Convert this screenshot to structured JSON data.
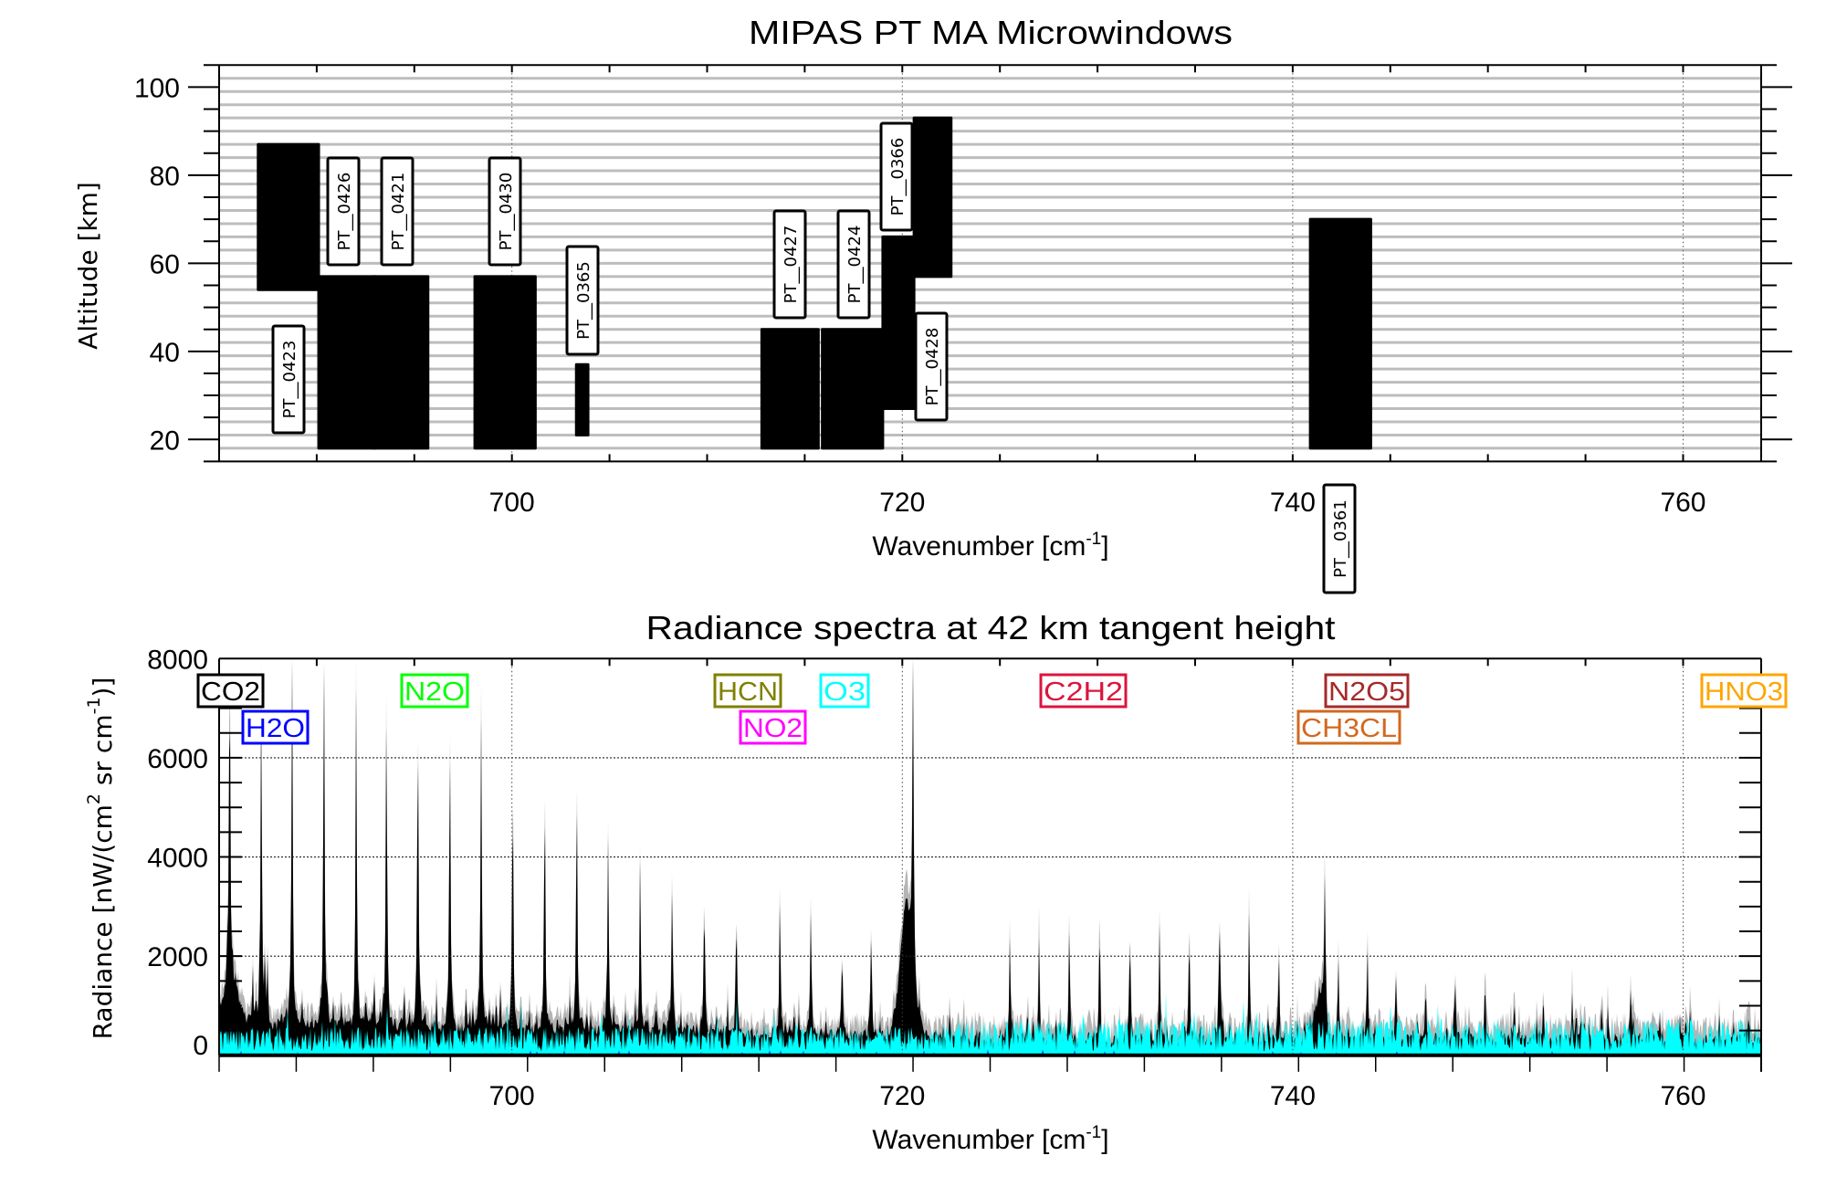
{
  "chart_data": [
    {
      "type": "bar",
      "title": "MIPAS PT MA Microwindows",
      "xlabel": "Wavenumber [cm",
      "xlabel_sup": "-1",
      "xlabel_end": "]",
      "ylabel": "Altitude [km]",
      "xlim": [
        685,
        764
      ],
      "ylim": [
        15,
        105
      ],
      "xticks": [
        700,
        720,
        740,
        760
      ],
      "yticks": [
        20,
        40,
        60,
        80,
        100
      ],
      "grid": "vertical dotted at major x ticks; horizontal gray lines at tangent heights",
      "tangent_heights_km": [
        18,
        21,
        24,
        27,
        30,
        33,
        36,
        39,
        42,
        45,
        48,
        51,
        54,
        57,
        60,
        63,
        66,
        69,
        72,
        75,
        78,
        81,
        84,
        87,
        90,
        93,
        96,
        99,
        102
      ],
      "windows": [
        {
          "label": "PT__0423",
          "wn": [
            687.0,
            690.1
          ],
          "alt": [
            54,
            87
          ]
        },
        {
          "label": "PT__0426",
          "wn": [
            690.1,
            693.0
          ],
          "alt": [
            18,
            57
          ]
        },
        {
          "label": "PT__0421",
          "wn": [
            692.9,
            695.7
          ],
          "alt": [
            18,
            57
          ]
        },
        {
          "label": "PT__0430",
          "wn": [
            698.1,
            701.2
          ],
          "alt": [
            18,
            57
          ]
        },
        {
          "label": "PT__0365",
          "wn": [
            703.3,
            703.9
          ],
          "alt": [
            21,
            37
          ]
        },
        {
          "label": "PT__0427",
          "wn": [
            712.8,
            715.7
          ],
          "alt": [
            18,
            45
          ]
        },
        {
          "label": "PT__0424",
          "wn": [
            715.9,
            719.0
          ],
          "alt": [
            18,
            45
          ]
        },
        {
          "label": "PT__0366",
          "wn": [
            719.0,
            720.6
          ],
          "alt": [
            27,
            66
          ]
        },
        {
          "label": "PT__0428",
          "wn": [
            720.6,
            722.5
          ],
          "alt": [
            57,
            93
          ]
        },
        {
          "label": "PT__0361",
          "wn": [
            740.9,
            744.0
          ],
          "alt": [
            18,
            70
          ]
        }
      ]
    },
    {
      "type": "area",
      "title": "Radiance spectra at 42 km tangent height",
      "xlabel": "Wavenumber [cm",
      "xlabel_sup": "-1",
      "xlabel_end": "]",
      "ylabel_parts": [
        "Radiance [nW/(cm",
        "2",
        " sr cm",
        "-1",
        ")]"
      ],
      "xlim": [
        685,
        764
      ],
      "ylim": [
        0,
        8000
      ],
      "xticks": [
        700,
        720,
        740,
        760
      ],
      "yticks": [
        0,
        2000,
        4000,
        6000,
        8000
      ],
      "grid": "dotted at major ticks",
      "series_colors": {
        "upper": "#b4b4b4",
        "total": "#000000",
        "second": "#00ffff",
        "third": "#0000ff"
      },
      "peaks": [
        [
          685.54,
          7000
        ],
        [
          687.16,
          6800
        ],
        [
          688.74,
          7600
        ],
        [
          690.37,
          7600
        ],
        [
          692.02,
          6930
        ],
        [
          693.57,
          6640
        ],
        [
          695.18,
          6560
        ],
        [
          696.82,
          6180
        ],
        [
          698.43,
          5880
        ],
        [
          700.04,
          5300
        ],
        [
          701.68,
          5040
        ],
        [
          703.32,
          5110
        ],
        [
          704.93,
          4050
        ],
        [
          706.57,
          3510
        ],
        [
          708.21,
          2950
        ],
        [
          709.86,
          2750
        ],
        [
          711.5,
          2600
        ],
        [
          713.73,
          2440
        ],
        [
          715.31,
          2140
        ],
        [
          716.92,
          1910
        ],
        [
          718.41,
          2210
        ],
        [
          720.55,
          6800
        ],
        [
          725.51,
          1950
        ],
        [
          727.01,
          2060
        ],
        [
          728.56,
          2250
        ],
        [
          730.11,
          2440
        ],
        [
          731.66,
          2210
        ],
        [
          733.18,
          2290
        ],
        [
          734.7,
          2210
        ],
        [
          736.25,
          2400
        ],
        [
          737.77,
          2250
        ],
        [
          739.29,
          1910
        ],
        [
          741.65,
          2860
        ],
        [
          742.34,
          1760
        ],
        [
          743.83,
          1950
        ],
        [
          745.29,
          1370
        ],
        [
          746.81,
          1110
        ],
        [
          748.33,
          1070
        ],
        [
          749.85,
          1180
        ],
        [
          751.35,
          920
        ],
        [
          752.84,
          880
        ],
        [
          754.33,
          690
        ],
        [
          755.82,
          650
        ],
        [
          757.32,
          1110
        ],
        [
          758.8,
          610
        ],
        [
          760.36,
          530
        ],
        [
          761.85,
          460
        ],
        [
          763.37,
          570
        ]
      ],
      "species_labels": [
        {
          "name": "CO2",
          "color": "#000000"
        },
        {
          "name": "H2O",
          "color": "#0000ff"
        },
        {
          "name": "N2O",
          "color": "#00ff00"
        },
        {
          "name": "HCN",
          "color": "#808000"
        },
        {
          "name": "NO2",
          "color": "#ff00ff"
        },
        {
          "name": "O3",
          "color": "#00ffff"
        },
        {
          "name": "C2H2",
          "color": "#dc143c"
        },
        {
          "name": "N2O5",
          "color": "#a52a2a"
        },
        {
          "name": "CH3CL",
          "color": "#d2691e"
        },
        {
          "name": "HNO3",
          "color": "#ffa500"
        }
      ]
    }
  ]
}
